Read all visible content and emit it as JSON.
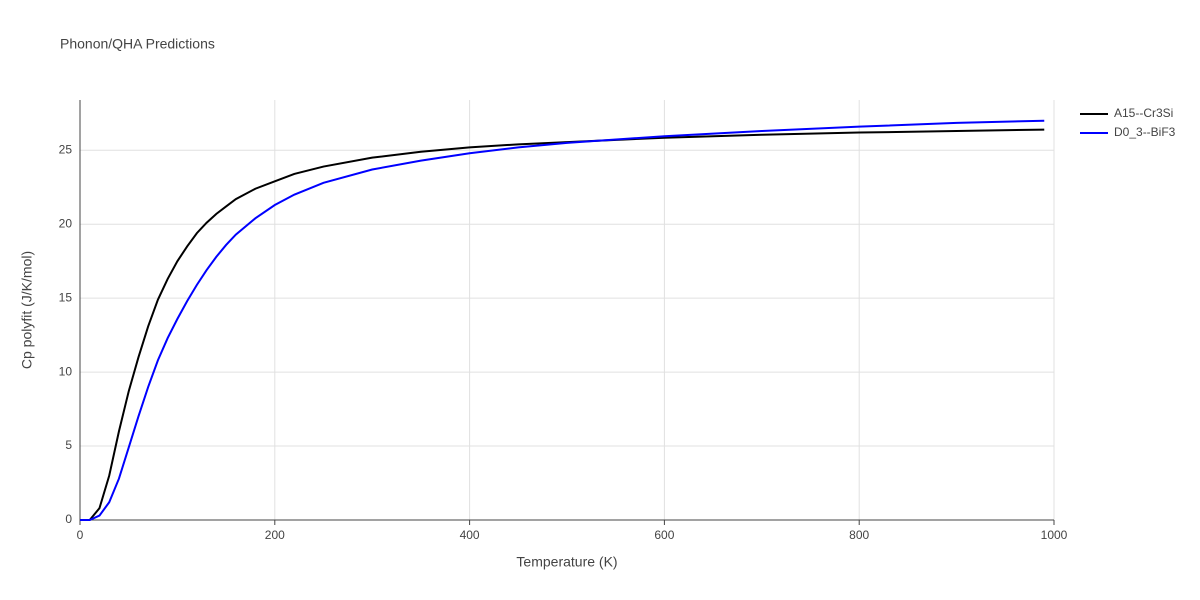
{
  "chart_data": {
    "type": "line",
    "title": "Phonon/QHA Predictions",
    "x_label": "Temperature (K)",
    "y_label": "Cp polyfit (J/K/mol)",
    "x": [
      0,
      10,
      20,
      30,
      40,
      50,
      60,
      70,
      80,
      90,
      100,
      110,
      120,
      130,
      140,
      150,
      160,
      180,
      200,
      220,
      250,
      300,
      350,
      400,
      450,
      500,
      600,
      700,
      800,
      900,
      990
    ],
    "series": [
      {
        "name": "A15--Cr3Si",
        "color": "#000000",
        "values": [
          0,
          0,
          0.8,
          3,
          6,
          8.7,
          11,
          13.1,
          14.9,
          16.3,
          17.5,
          18.5,
          19.4,
          20.1,
          20.7,
          21.2,
          21.7,
          22.4,
          22.9,
          23.4,
          23.9,
          24.5,
          24.9,
          25.2,
          25.4,
          25.55,
          25.85,
          26.05,
          26.2,
          26.3,
          26.4
        ]
      },
      {
        "name": "D0_3--BiF3",
        "color": "#0000ff",
        "values": [
          0,
          0,
          0.3,
          1.2,
          2.8,
          4.9,
          7,
          9,
          10.8,
          12.3,
          13.6,
          14.8,
          15.9,
          16.9,
          17.8,
          18.6,
          19.3,
          20.4,
          21.3,
          22,
          22.8,
          23.7,
          24.3,
          24.8,
          25.2,
          25.5,
          25.95,
          26.3,
          26.6,
          26.85,
          27.0
        ]
      }
    ],
    "xlim": [
      0,
      1000
    ],
    "xticks": [
      0,
      200,
      400,
      600,
      800,
      1000
    ],
    "ylim": [
      0,
      28.4
    ],
    "yticks": [
      0,
      5,
      10,
      15,
      20,
      25
    ],
    "grid": true,
    "legend": "right"
  }
}
